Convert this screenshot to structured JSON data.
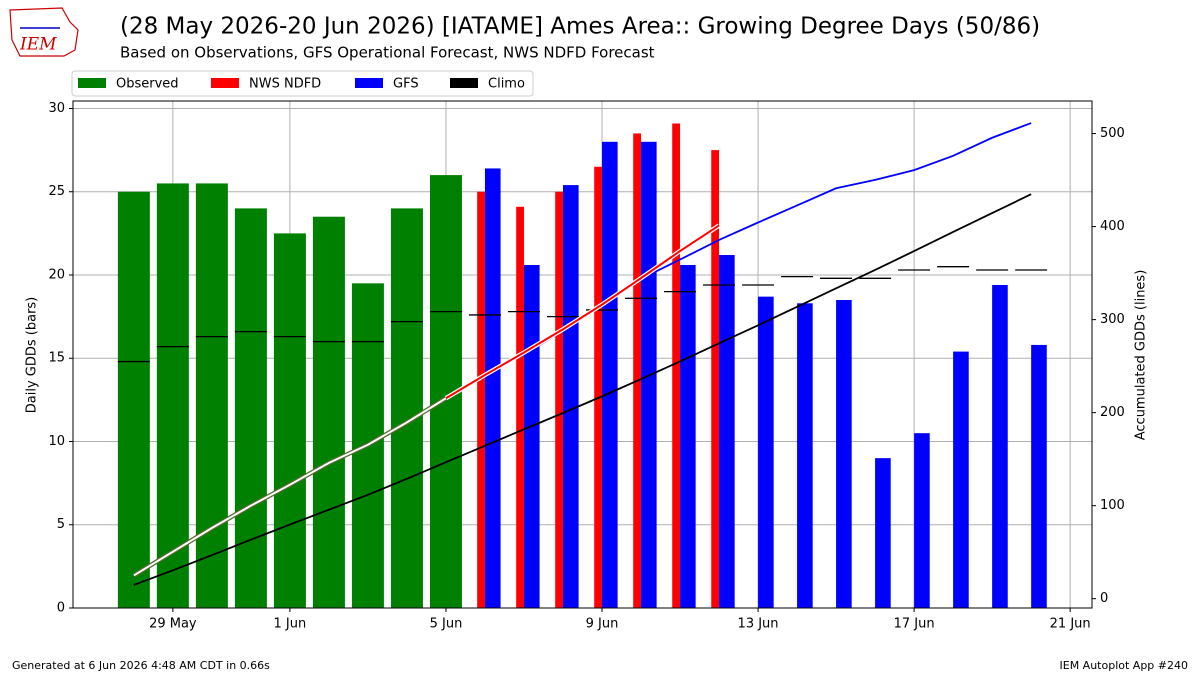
{
  "chart_data": {
    "type": "bar_line_combo",
    "title": "(28 May 2026-20 Jun 2026) [IATAME] Ames Area:: Growing Degree Days (50/86)",
    "subtitle": "Based on Observations, GFS Operational Forecast, NWS NDFD Forecast",
    "logo": "IEM",
    "ylabel": "Daily GDDs (bars)",
    "y2label": "Accumulated GDDs (lines)",
    "footer_left": "Generated at 6 Jun 2026 4:48 AM CDT in 0.66s",
    "footer_right": "IEM Autoplot App #240",
    "grid": true,
    "legend": "upper left outside",
    "xlim": [
      "2026-05-26T10:34:00Z",
      "2026-06-21T13:26:00Z"
    ],
    "xticks": [
      {
        "value": "2026-05-29",
        "label": "29 May"
      },
      {
        "value": "2026-06-01",
        "label": "1 Jun"
      },
      {
        "value": "2026-06-05",
        "label": "5 Jun"
      },
      {
        "value": "2026-06-09",
        "label": "9 Jun"
      },
      {
        "value": "2026-06-13",
        "label": "13 Jun"
      },
      {
        "value": "2026-06-17",
        "label": "17 Jun"
      },
      {
        "value": "2026-06-21",
        "label": "21 Jun"
      }
    ],
    "ylim": [
      0,
      30.45
    ],
    "yticks": [
      0,
      5,
      10,
      15,
      20,
      25,
      30
    ],
    "y2lim": [
      -10,
      535
    ],
    "y2ticks": [
      0,
      100,
      200,
      300,
      400,
      500
    ],
    "bar_series": [
      {
        "name": "Observed",
        "color": "#008000",
        "x": [
          "2026-05-28",
          "2026-05-29",
          "2026-05-30",
          "2026-05-31",
          "2026-06-01",
          "2026-06-02",
          "2026-06-03",
          "2026-06-04",
          "2026-06-05"
        ],
        "values": [
          25,
          25.5,
          25.5,
          24,
          22.5,
          23.5,
          19.5,
          24,
          26
        ]
      },
      {
        "name": "NWS NDFD",
        "color": "#ff0000",
        "x": [
          "2026-06-06",
          "2026-06-07",
          "2026-06-08",
          "2026-06-09",
          "2026-06-10",
          "2026-06-11",
          "2026-06-12"
        ],
        "values": [
          25,
          24.1,
          25,
          26.5,
          28.5,
          29.1,
          27.5
        ]
      },
      {
        "name": "GFS",
        "color": "#0000ff",
        "x": [
          "2026-06-06",
          "2026-06-07",
          "2026-06-08",
          "2026-06-09",
          "2026-06-10",
          "2026-06-11",
          "2026-06-12",
          "2026-06-13",
          "2026-06-14",
          "2026-06-15",
          "2026-06-16",
          "2026-06-17",
          "2026-06-18",
          "2026-06-19",
          "2026-06-20"
        ],
        "values": [
          26.4,
          20.6,
          25.4,
          28,
          28,
          20.6,
          21.2,
          18.7,
          18.3,
          18.5,
          9,
          10.5,
          15.4,
          19.4,
          15.8
        ]
      },
      {
        "name": "Climo",
        "color": "#000000",
        "x": [
          "2026-05-28",
          "2026-05-29",
          "2026-05-30",
          "2026-05-31",
          "2026-06-01",
          "2026-06-02",
          "2026-06-03",
          "2026-06-04",
          "2026-06-05",
          "2026-06-06",
          "2026-06-07",
          "2026-06-08",
          "2026-06-09",
          "2026-06-10",
          "2026-06-11",
          "2026-06-12",
          "2026-06-13",
          "2026-06-14",
          "2026-06-15",
          "2026-06-16",
          "2026-06-17",
          "2026-06-18",
          "2026-06-19",
          "2026-06-20"
        ],
        "values": [
          14.8,
          15.7,
          16.3,
          16.6,
          16.3,
          16,
          16,
          17.2,
          17.8,
          17.6,
          17.8,
          17.5,
          17.9,
          18.6,
          19,
          19.4,
          19.4,
          19.9,
          19.8,
          19.8,
          20.3,
          20.5,
          20.3,
          20.3
        ]
      }
    ],
    "line_series": [
      {
        "color": "#000000",
        "axis": "y2",
        "x": [
          "2026-05-28",
          "2026-05-29",
          "2026-05-30",
          "2026-05-31",
          "2026-06-01",
          "2026-06-02",
          "2026-06-03",
          "2026-06-04",
          "2026-06-05",
          "2026-06-06",
          "2026-06-07",
          "2026-06-08",
          "2026-06-09",
          "2026-06-10",
          "2026-06-11",
          "2026-06-12",
          "2026-06-13",
          "2026-06-14",
          "2026-06-15",
          "2026-06-16",
          "2026-06-17",
          "2026-06-18",
          "2026-06-19",
          "2026-06-20"
        ],
        "values": [
          14.8,
          30.5,
          46.8,
          63.4,
          79.7,
          95.7,
          111.7,
          128.9,
          146.7,
          164.3,
          182.1,
          199.6,
          217.5,
          236.1,
          255.1,
          274.5,
          293.9,
          313.8,
          333.6,
          353.4,
          373.7,
          394.2,
          414.5,
          434.8
        ]
      },
      {
        "color": "#0000ff",
        "axis": "y2",
        "x": [
          "2026-06-05",
          "2026-06-06",
          "2026-06-07",
          "2026-06-08",
          "2026-06-09",
          "2026-06-10",
          "2026-06-11",
          "2026-06-12",
          "2026-06-13",
          "2026-06-14",
          "2026-06-15",
          "2026-06-16",
          "2026-06-17",
          "2026-06-18",
          "2026-06-19",
          "2026-06-20"
        ],
        "values": [
          215.5,
          241.9,
          262.5,
          287.9,
          315.9,
          343.9,
          364.5,
          385.7,
          404.4,
          422.7,
          441.2,
          450.2,
          460.7,
          476.1,
          495.5,
          511.3
        ]
      },
      {
        "color": "#ff0000",
        "axis": "y2",
        "outline": "#ffffff",
        "x": [
          "2026-06-05",
          "2026-06-06",
          "2026-06-07",
          "2026-06-08",
          "2026-06-09",
          "2026-06-10",
          "2026-06-11",
          "2026-06-12"
        ],
        "values": [
          215.5,
          240.5,
          264.6,
          289.6,
          316.1,
          344.6,
          373.7,
          401.2
        ]
      },
      {
        "color": "#ffffff",
        "axis": "y2",
        "outline": "#556b2f",
        "x": [
          "2026-05-28",
          "2026-05-29",
          "2026-05-30",
          "2026-05-31",
          "2026-06-01",
          "2026-06-02",
          "2026-06-03",
          "2026-06-04",
          "2026-06-05"
        ],
        "values": [
          25,
          50.5,
          76,
          100,
          122.5,
          146,
          165.5,
          189.5,
          215.5
        ]
      }
    ]
  }
}
